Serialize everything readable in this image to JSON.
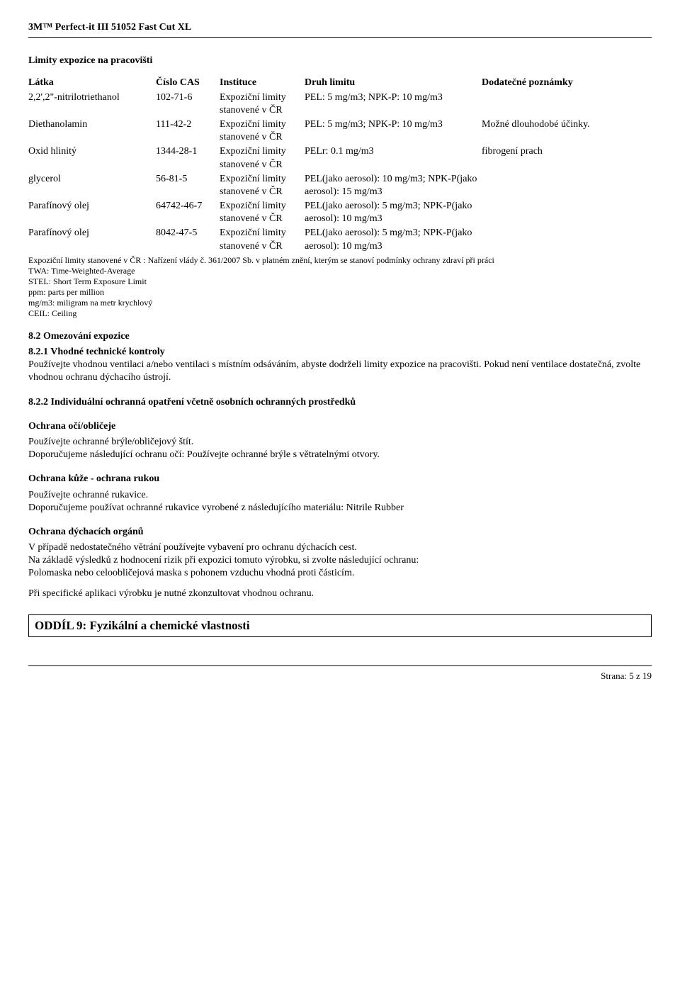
{
  "header": {
    "product": "3M™ Perfect-it III 51052 Fast Cut XL"
  },
  "limits": {
    "title": "Limity expozice na pracovišti",
    "columns": {
      "substance": "Látka",
      "cas": "Číslo CAS",
      "institution": "Instituce",
      "limit_type": "Druh limitu",
      "notes": "Dodatečné poznámky"
    },
    "rows": [
      {
        "substance": "2,2',2\"-nitrilotriethanol",
        "cas": "102-71-6",
        "institution": "Expoziční limity stanovené v ČR",
        "limit": "PEL: 5 mg/m3; NPK-P: 10 mg/m3",
        "notes": ""
      },
      {
        "substance": "Diethanolamin",
        "cas": "111-42-2",
        "institution": "Expoziční limity stanovené v ČR",
        "limit": "PEL: 5 mg/m3; NPK-P: 10 mg/m3",
        "notes": "Možné dlouhodobé účinky."
      },
      {
        "substance": "Oxid hlinitý",
        "cas": "1344-28-1",
        "institution": "Expoziční limity stanovené v ČR",
        "limit": "PELr: 0.1 mg/m3",
        "notes": "fibrogení prach"
      },
      {
        "substance": "glycerol",
        "cas": "56-81-5",
        "institution": "Expoziční limity stanovené v ČR",
        "limit": "PEL(jako aerosol): 10 mg/m3; NPK-P(jako aerosol): 15 mg/m3",
        "notes": ""
      },
      {
        "substance": "Parafínový olej",
        "cas": "64742-46-7",
        "institution": "Expoziční limity stanovené v ČR",
        "limit": "PEL(jako aerosol): 5 mg/m3; NPK-P(jako aerosol): 10 mg/m3",
        "notes": ""
      },
      {
        "substance": "Parafínový olej",
        "cas": "8042-47-5",
        "institution": "Expoziční limity stanovené v ČR",
        "limit": "PEL(jako aerosol): 5 mg/m3; NPK-P(jako aerosol): 10 mg/m3",
        "notes": ""
      }
    ],
    "footnote_lines": [
      "Expoziční limity stanovené v ČR : Nařízení vlády č. 361/2007 Sb. v platném znění, kterým se stanoví podmínky ochrany zdraví při práci",
      "TWA: Time-Weighted-Average",
      "STEL: Short Term Exposure Limit",
      "ppm: parts per million",
      "mg/m3: miligram na metr krychlový",
      "CEIL: Ceiling"
    ]
  },
  "s82": {
    "title": "8.2 Omezování expozice",
    "s821_title": "8.2.1 Vhodné technické kontroly",
    "s821_body": "Používejte vhodnou ventilaci a/nebo ventilaci s místním odsáváním, abyste dodrželi limity expozice na pracovišti. Pokud není ventilace dostatečná, zvolte vhodnou ochranu dýchacího ústrojí.",
    "s822_title": "8.2.2 Individuální ochranná opatření včetně osobních ochranných prostředků",
    "eye_title": "Ochrana očí/obličeje",
    "eye_line1": "Používejte ochranné brýle/obličejový štít.",
    "eye_line2": "Doporučujeme následující ochranu očí: Používejte ochranné brýle s větratelnými otvory.",
    "skin_title": "Ochrana kůže - ochrana rukou",
    "skin_line1": "Používejte ochranné rukavice.",
    "skin_line2": "Doporučujeme používat ochranné rukavice vyrobené z následujícího materiálu: Nitrile Rubber",
    "resp_title": "Ochrana dýchacích orgánů",
    "resp_line1": "V případě nedostatečného větrání používejte vybavení pro ochranu dýchacích cest.",
    "resp_line2": "Na základě výsledků z hodnocení rizik při expozici tomuto výrobku, si zvolte následující ochranu:",
    "resp_line3": "Polomaska nebo celoobličejová maska s pohonem vzduchu vhodná proti částicím.",
    "resp_line4": "Při specifické aplikaci výrobku je nutné zkonzultovat vhodnou ochranu."
  },
  "oddil9": {
    "title": "ODDÍL 9: Fyzikální a chemické vlastnosti"
  },
  "footer": {
    "page": "Strana: 5 z   19"
  }
}
